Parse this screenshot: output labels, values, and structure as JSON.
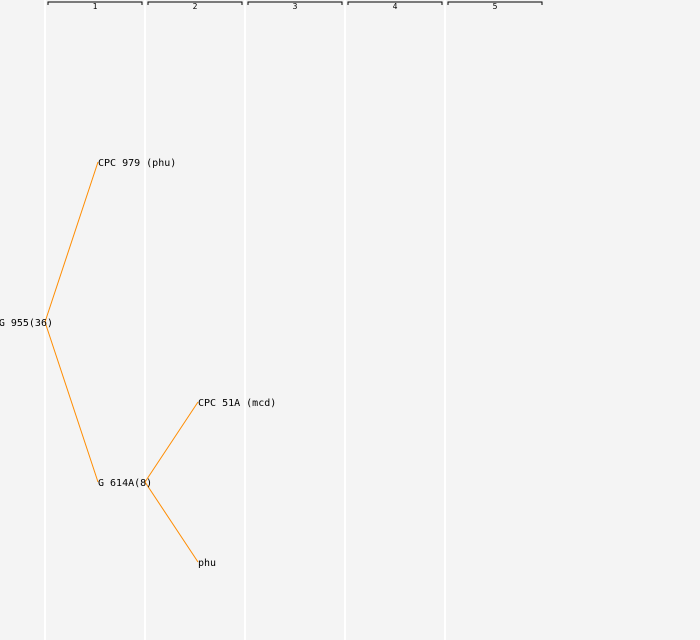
{
  "columns": [
    "1",
    "2",
    "3",
    "4",
    "5"
  ],
  "colors": {
    "background": "#f4f4f4",
    "grid": "#ffffff",
    "edge": "#ff8c00",
    "text": "#000000"
  },
  "tree": {
    "label": "G 955(36)",
    "children": [
      {
        "label": "CPC 979 (phu)",
        "children": []
      },
      {
        "label": "G 614A(8)",
        "children": [
          {
            "label": "CPC 51A (mcd)",
            "children": []
          },
          {
            "label": "phu",
            "children": []
          }
        ]
      }
    ]
  }
}
